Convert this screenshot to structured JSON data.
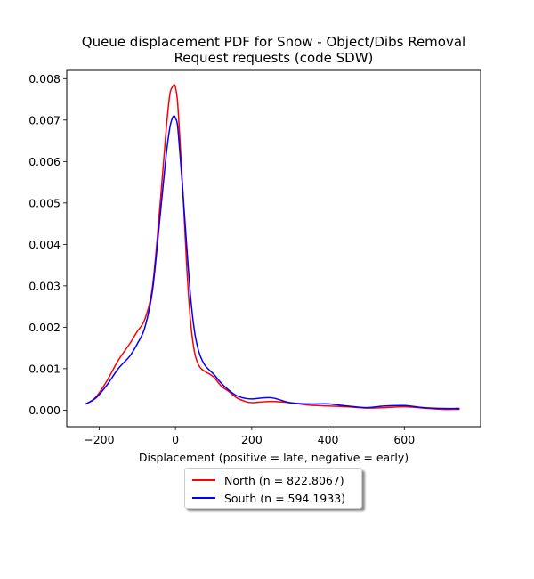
{
  "chart_data": {
    "type": "line",
    "title": "Queue displacement PDF for Snow - Object/Dibs Removal Request  requests (code SDW)",
    "title_lines": [
      "Queue displacement PDF for Snow - Object/Dibs Removal",
      "Request  requests (code SDW)"
    ],
    "xlabel": "Displacement (positive = late, negative = early)",
    "ylabel": "",
    "xlim": [
      -285,
      800
    ],
    "ylim": [
      -0.0004,
      0.0082
    ],
    "xticks": [
      -200,
      0,
      200,
      400,
      600
    ],
    "xtick_labels": [
      "−200",
      "0",
      "200",
      "400",
      "600"
    ],
    "yticks": [
      0.0,
      0.001,
      0.002,
      0.003,
      0.004,
      0.005,
      0.006,
      0.007,
      0.008
    ],
    "ytick_labels": [
      "0.000",
      "0.001",
      "0.002",
      "0.003",
      "0.004",
      "0.005",
      "0.006",
      "0.007",
      "0.008"
    ],
    "grid": false,
    "legend_position": "below",
    "series": [
      {
        "name": "North (n = 822.8067)",
        "color": "#ff0000",
        "x": [
          -235,
          -210,
          -180,
          -150,
          -120,
          -100,
          -80,
          -60,
          -40,
          -25,
          -15,
          -8,
          -3,
          0,
          5,
          10,
          20,
          30,
          40,
          50,
          60,
          70,
          80,
          100,
          120,
          140,
          160,
          180,
          200,
          250,
          300,
          350,
          400,
          450,
          500,
          550,
          600,
          650,
          700,
          745
        ],
        "y": [
          0.00015,
          0.0003,
          0.0007,
          0.0012,
          0.0016,
          0.0019,
          0.0022,
          0.003,
          0.005,
          0.0067,
          0.0076,
          0.0078,
          0.00785,
          0.0078,
          0.0075,
          0.0068,
          0.0052,
          0.0034,
          0.0021,
          0.0014,
          0.0011,
          0.00098,
          0.00092,
          0.0008,
          0.00058,
          0.00045,
          0.0003,
          0.00022,
          0.00018,
          0.00021,
          0.00018,
          0.00012,
          0.0001,
          8e-05,
          5e-05,
          6e-05,
          8e-05,
          5e-05,
          2e-05,
          2e-05
        ]
      },
      {
        "name": "South (n = 594.1933)",
        "color": "#0000ff",
        "x": [
          -235,
          -210,
          -180,
          -150,
          -120,
          -100,
          -80,
          -60,
          -40,
          -25,
          -15,
          -8,
          -3,
          0,
          5,
          10,
          20,
          30,
          40,
          50,
          60,
          70,
          80,
          100,
          120,
          140,
          160,
          180,
          200,
          250,
          300,
          350,
          400,
          450,
          500,
          550,
          600,
          650,
          700,
          745
        ],
        "y": [
          0.00015,
          0.00028,
          0.0006,
          0.001,
          0.0013,
          0.0016,
          0.002,
          0.0029,
          0.0047,
          0.0061,
          0.0068,
          0.00705,
          0.0071,
          0.00705,
          0.0069,
          0.0064,
          0.0052,
          0.0039,
          0.0027,
          0.0019,
          0.00145,
          0.0012,
          0.00105,
          0.00087,
          0.00065,
          0.00048,
          0.00035,
          0.00029,
          0.00027,
          0.0003,
          0.00018,
          0.00015,
          0.00015,
          0.0001,
          6e-05,
          0.0001,
          0.00011,
          6e-05,
          4e-05,
          4e-05
        ]
      }
    ]
  }
}
